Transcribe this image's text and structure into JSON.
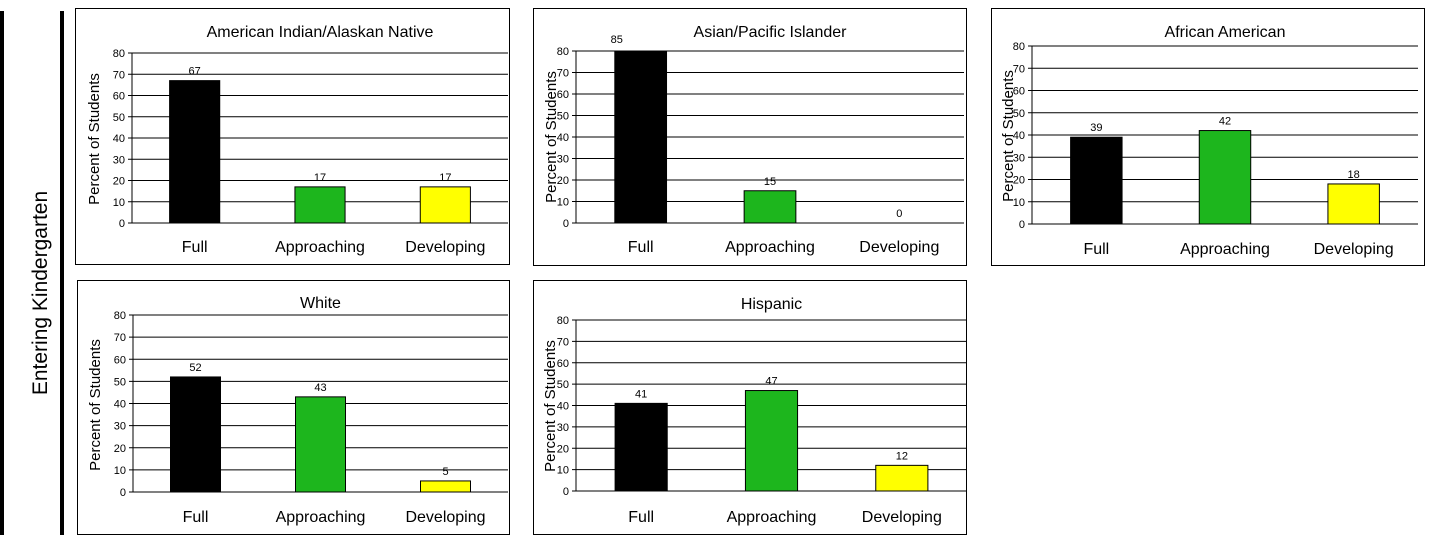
{
  "side_label": "Entering Kindergarten",
  "chart_data": [
    {
      "type": "bar",
      "title": "American Indian/Alaskan Native",
      "ylabel": "Percent of Students",
      "categories": [
        "Full",
        "Approaching",
        "Developing"
      ],
      "values": [
        67,
        17,
        17
      ],
      "data_labels": [
        "67",
        "17",
        "17"
      ],
      "colors": [
        "#000000",
        "#1db61d",
        "#ffff00"
      ],
      "ylim": [
        0,
        80
      ],
      "yticks": [
        "0",
        "10",
        "20",
        "30",
        "40",
        "50",
        "60",
        "70",
        "80"
      ],
      "grid": true
    },
    {
      "type": "bar",
      "title": "Asian/Pacific Islander",
      "ylabel": "Percent of Students",
      "categories": [
        "Full",
        "Approaching",
        "Developing"
      ],
      "values": [
        85,
        15,
        0
      ],
      "data_labels": [
        "85",
        "15",
        "0"
      ],
      "colors": [
        "#000000",
        "#1db61d",
        "#ffff00"
      ],
      "ylim": [
        0,
        80
      ],
      "yticks": [
        "0",
        "10",
        "20",
        "30",
        "40",
        "50",
        "60",
        "70",
        "80"
      ],
      "grid": true
    },
    {
      "type": "bar",
      "title": "African American",
      "ylabel": "Percent of Students",
      "categories": [
        "Full",
        "Approaching",
        "Developing"
      ],
      "values": [
        39,
        42,
        18
      ],
      "data_labels": [
        "39",
        "42",
        "18"
      ],
      "colors": [
        "#000000",
        "#1db61d",
        "#ffff00"
      ],
      "ylim": [
        0,
        80
      ],
      "yticks": [
        "0",
        "10",
        "20",
        "30",
        "40",
        "50",
        "60",
        "70",
        "80"
      ],
      "grid": true
    },
    {
      "type": "bar",
      "title": "White",
      "ylabel": "Percent of Students",
      "categories": [
        "Full",
        "Approaching",
        "Developing"
      ],
      "values": [
        52,
        43,
        5
      ],
      "data_labels": [
        "52",
        "43",
        "5"
      ],
      "colors": [
        "#000000",
        "#1db61d",
        "#ffff00"
      ],
      "ylim": [
        0,
        80
      ],
      "yticks": [
        "0",
        "10",
        "20",
        "30",
        "40",
        "50",
        "60",
        "70",
        "80"
      ],
      "grid": true
    },
    {
      "type": "bar",
      "title": "Hispanic",
      "ylabel": "Percent of Students",
      "categories": [
        "Full",
        "Approaching",
        "Developing"
      ],
      "values": [
        41,
        47,
        12
      ],
      "data_labels": [
        "41",
        "47",
        "12"
      ],
      "colors": [
        "#000000",
        "#1db61d",
        "#ffff00"
      ],
      "ylim": [
        0,
        80
      ],
      "yticks": [
        "0",
        "10",
        "20",
        "30",
        "40",
        "50",
        "60",
        "70",
        "80"
      ],
      "grid": true
    }
  ]
}
